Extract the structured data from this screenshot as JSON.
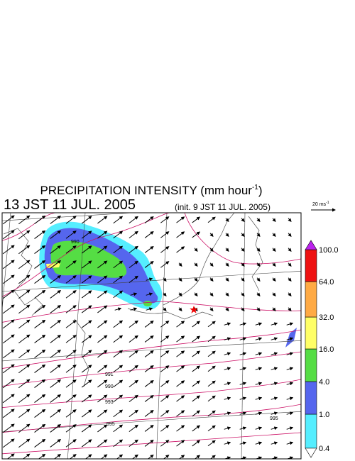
{
  "title": "PRECIPITATION INTENSITY (mm hour",
  "title_superscript": "-1",
  "title_close": ")",
  "valid_time": "13 JST 11 JUL. 2005",
  "init_time": "(init. 9 JST 11 JUL. 2005)",
  "vector_scale": "20 ms",
  "vector_scale_superscript": "-1",
  "colorbar": {
    "levels": [
      {
        "value": 0.4,
        "label": "0.4"
      },
      {
        "value": 1,
        "label": "1.0"
      },
      {
        "value": 4,
        "label": "4.0"
      },
      {
        "value": 16,
        "label": "16.0"
      },
      {
        "value": 32,
        "label": "32.0"
      },
      {
        "value": 64,
        "label": "64.0"
      },
      {
        "value": 100,
        "label": "100.0"
      }
    ],
    "colors": [
      "#55eeff",
      "#5566ee",
      "#55dd44",
      "#ffff66",
      "#ffaa44",
      "#ee1111"
    ],
    "under_color": "#ffffff",
    "over_color": "#bb22ee"
  },
  "isobar_labels": [
    990,
    991,
    990,
    993,
    995,
    995
  ]
}
